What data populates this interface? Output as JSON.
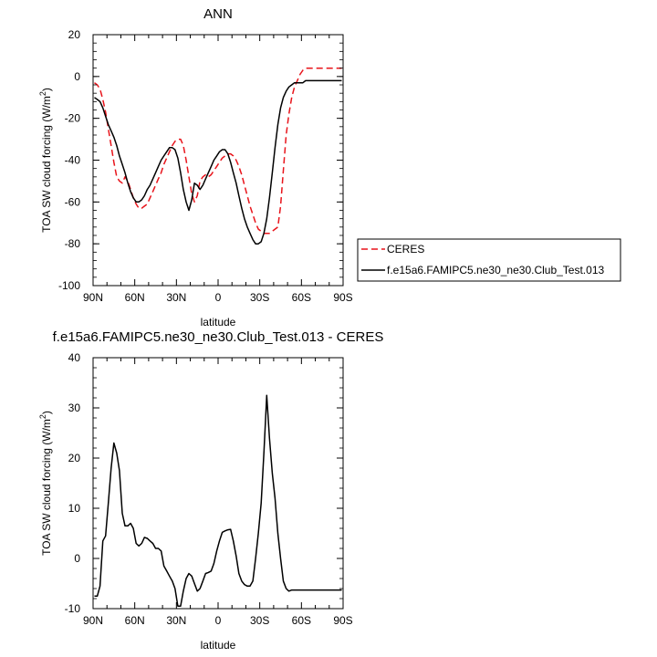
{
  "chart_data": [
    {
      "type": "line",
      "title": "ANN",
      "xlabel": "latitude",
      "ylabel": "TOA SW cloud forcing (W/m",
      "ylabel_sup": "2",
      "ylabel_end": ")",
      "xlim": [
        90,
        -90
      ],
      "ylim": [
        -100,
        20
      ],
      "xticks": [
        90,
        60,
        30,
        0,
        -30,
        -60,
        -90
      ],
      "xtick_labels": [
        "90N",
        "60N",
        "30N",
        "0",
        "30S",
        "60S",
        "90S"
      ],
      "yticks": [
        -100,
        -80,
        -60,
        -40,
        -20,
        0,
        20
      ],
      "ytick_labels": [
        "-100",
        "-80",
        "-60",
        "-40",
        "-20",
        "0",
        "20"
      ],
      "legend_position": "right",
      "series": [
        {
          "name": "CERES",
          "color": "#e8141b",
          "dash": "dashed",
          "x": [
            89,
            87,
            85,
            83,
            81,
            79,
            77,
            75,
            73,
            71,
            69,
            67,
            65,
            63,
            61,
            59,
            57,
            55,
            53,
            51,
            49,
            47,
            45,
            43,
            41,
            39,
            37,
            35,
            33,
            31,
            29,
            27,
            25,
            23,
            21,
            19,
            17,
            15,
            13,
            11,
            9,
            7,
            5,
            3,
            1,
            -1,
            -3,
            -5,
            -7,
            -9,
            -11,
            -13,
            -15,
            -17,
            -19,
            -21,
            -23,
            -25,
            -27,
            -29,
            -31,
            -33,
            -35,
            -37,
            -39,
            -41,
            -43,
            -45,
            -47,
            -49,
            -51,
            -53,
            -55,
            -57,
            -59,
            -61,
            -63,
            -65,
            -67,
            -69,
            -71,
            -73,
            -75,
            -77,
            -79,
            -81,
            -83,
            -85,
            -87,
            -89
          ],
          "y": [
            -3,
            -4,
            -6,
            -11,
            -17,
            -25,
            -33,
            -41,
            -48,
            -50,
            -51,
            -48,
            -50,
            -54,
            -58,
            -61,
            -63,
            -63,
            -62,
            -61,
            -58,
            -55,
            -52,
            -49,
            -46,
            -42,
            -39,
            -36,
            -33,
            -31,
            -30,
            -30,
            -33,
            -40,
            -48,
            -56,
            -60,
            -57,
            -50,
            -48,
            -47,
            -48,
            -47,
            -45,
            -43,
            -41,
            -39,
            -38,
            -37,
            -37,
            -38,
            -40,
            -43,
            -47,
            -52,
            -57,
            -62,
            -66,
            -70,
            -73,
            -74,
            -75,
            -75,
            -75,
            -74,
            -73,
            -72,
            -62,
            -45,
            -28,
            -18,
            -10,
            -5,
            -2,
            1,
            3,
            4,
            4,
            4,
            4,
            4,
            4,
            4,
            4,
            4,
            4,
            4,
            4,
            4,
            4
          ]
        },
        {
          "name": "f.e15a6.FAMIPC5.ne30_ne30.Club_Test.013",
          "color": "#000000",
          "dash": "solid",
          "x": [
            89,
            87,
            85,
            83,
            81,
            79,
            77,
            75,
            73,
            71,
            69,
            67,
            65,
            63,
            61,
            59,
            57,
            55,
            53,
            51,
            49,
            47,
            45,
            43,
            41,
            39,
            37,
            35,
            33,
            31,
            29,
            27,
            25,
            23,
            21,
            19,
            17,
            15,
            13,
            11,
            9,
            7,
            5,
            3,
            1,
            -1,
            -3,
            -5,
            -7,
            -9,
            -11,
            -13,
            -15,
            -17,
            -19,
            -21,
            -23,
            -25,
            -27,
            -29,
            -31,
            -33,
            -35,
            -37,
            -39,
            -41,
            -43,
            -45,
            -47,
            -49,
            -51,
            -53,
            -55,
            -57,
            -59,
            -61,
            -63,
            -65,
            -67,
            -69,
            -71,
            -73,
            -75,
            -77,
            -79,
            -81,
            -83,
            -85,
            -87,
            -89
          ],
          "y": [
            -10,
            -11,
            -12,
            -15,
            -19,
            -23,
            -26,
            -29,
            -33,
            -38,
            -42,
            -46,
            -51,
            -55,
            -58,
            -60,
            -60,
            -59,
            -57,
            -54,
            -52,
            -49,
            -46,
            -43,
            -40,
            -38,
            -36,
            -34,
            -34,
            -35,
            -39,
            -46,
            -54,
            -60,
            -64,
            -59,
            -51,
            -52,
            -54,
            -52,
            -49,
            -46,
            -43,
            -40,
            -38,
            -36,
            -35,
            -35,
            -37,
            -41,
            -46,
            -51,
            -57,
            -63,
            -68,
            -72,
            -75,
            -78,
            -80,
            -80,
            -79,
            -75,
            -68,
            -58,
            -46,
            -34,
            -23,
            -15,
            -10,
            -7,
            -5,
            -4,
            -3,
            -3,
            -3,
            -3,
            -2,
            -2,
            -2,
            -2,
            -2,
            -2,
            -2,
            -2,
            -2,
            -2,
            -2,
            -2,
            -2,
            -2
          ]
        }
      ]
    },
    {
      "type": "line",
      "title": "f.e15a6.FAMIPC5.ne30_ne30.Club_Test.013 - CERES",
      "xlabel": "latitude",
      "ylabel": "TOA SW cloud forcing (W/m",
      "ylabel_sup": "2",
      "ylabel_end": ")",
      "xlim": [
        90,
        -90
      ],
      "ylim": [
        -10,
        40
      ],
      "xticks": [
        90,
        60,
        30,
        0,
        -30,
        -60,
        -90
      ],
      "xtick_labels": [
        "90N",
        "60N",
        "30N",
        "0",
        "30S",
        "60S",
        "90S"
      ],
      "yticks": [
        -10,
        0,
        10,
        20,
        30,
        40
      ],
      "ytick_labels": [
        "-10",
        "0",
        "10",
        "20",
        "30",
        "40"
      ],
      "series": [
        {
          "color": "#000000",
          "dash": "solid",
          "x": [
            89,
            87,
            85,
            83,
            81,
            79,
            77,
            75,
            73,
            71,
            69,
            67,
            65,
            63,
            61,
            59,
            57,
            55,
            53,
            51,
            49,
            47,
            45,
            43,
            41,
            39,
            37,
            35,
            33,
            31,
            29,
            27,
            25,
            23,
            21,
            19,
            17,
            15,
            13,
            11,
            9,
            7,
            5,
            3,
            1,
            -1,
            -3,
            -5,
            -7,
            -9,
            -11,
            -13,
            -15,
            -17,
            -19,
            -21,
            -23,
            -25,
            -27,
            -29,
            -31,
            -33,
            -35,
            -37,
            -39,
            -41,
            -43,
            -45,
            -47,
            -49,
            -51,
            -53,
            -55,
            -57,
            -59,
            -61,
            -63,
            -65,
            -67,
            -69,
            -71,
            -73,
            -75,
            -77,
            -79,
            -81,
            -83,
            -85,
            -87,
            -89
          ],
          "y": [
            -7.5,
            -7.5,
            -5.5,
            3.5,
            4.5,
            11,
            18,
            23,
            21,
            17.5,
            9,
            6.5,
            6.5,
            7,
            6,
            3,
            2.5,
            3,
            4.2,
            4,
            3.5,
            3,
            2,
            2,
            1.5,
            -1.5,
            -2.5,
            -3.5,
            -4.5,
            -6,
            -9.5,
            -9.5,
            -6.5,
            -4,
            -3,
            -3.5,
            -5,
            -6.5,
            -6,
            -4.5,
            -3,
            -2.8,
            -2.5,
            -1,
            1.5,
            3.5,
            5.2,
            5.5,
            5.7,
            5.8,
            3.5,
            0.5,
            -3,
            -4.5,
            -5.2,
            -5.5,
            -5.5,
            -4.5,
            0,
            5,
            11,
            21,
            32.5,
            24,
            17,
            12,
            5,
            0,
            -4.5,
            -6,
            -6.5,
            -6.3,
            -6.3,
            -6.3,
            -6.3,
            -6.3,
            -6.3,
            -6.3,
            -6.3,
            -6.3,
            -6.3,
            -6.3,
            -6.3,
            -6.3,
            -6.3,
            -6.3,
            -6.3,
            -6.3,
            -6.3,
            -6.3
          ]
        }
      ]
    }
  ]
}
